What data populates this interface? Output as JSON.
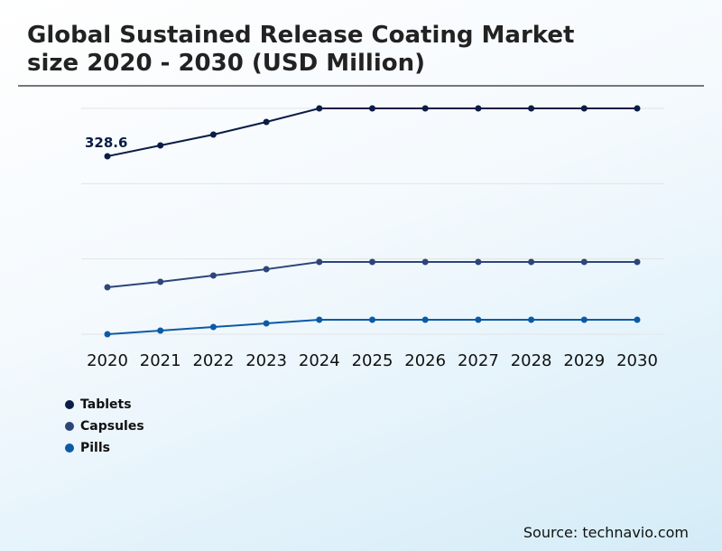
{
  "title_line1": "Global Sustained Release Coating Market",
  "title_line2": "size 2020 - 2030 (USD Million)",
  "source": "Source: technavio.com",
  "chart_data": {
    "type": "line",
    "title": "Global Sustained Release Coating Market size 2020 - 2030 (USD Million)",
    "x": [
      "2020",
      "2021",
      "2022",
      "2023",
      "2024",
      "2025",
      "2026",
      "2027",
      "2028",
      "2029",
      "2030"
    ],
    "ylim": [
      0,
      417
    ],
    "grid": true,
    "legend": "bottom-left",
    "annotations": [
      {
        "series": "Tablets",
        "x": "2020",
        "label": "328.6"
      }
    ],
    "series": [
      {
        "name": "Tablets",
        "color": "#0b1c45",
        "values": [
          328.6,
          348.6,
          368.6,
          392,
          417,
          417,
          417,
          417,
          417,
          417,
          417
        ]
      },
      {
        "name": "Capsules",
        "color": "#2d4579",
        "values": [
          86.7,
          96.7,
          108.4,
          120,
          133.4,
          133.4,
          133.4,
          133.4,
          133.4,
          133.4,
          133.4
        ]
      },
      {
        "name": "Pills",
        "color": "#0b5aa6",
        "values": [
          0,
          6.7,
          13.3,
          20,
          26.7,
          26.7,
          26.7,
          26.7,
          26.7,
          26.7,
          26.7
        ]
      }
    ]
  }
}
